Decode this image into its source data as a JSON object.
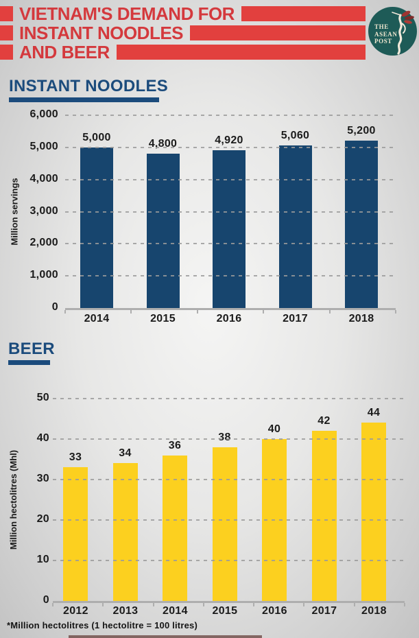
{
  "header": {
    "title_lines": [
      "VIETNAM'S DEMAND FOR",
      "INSTANT NOODLES",
      "AND BEER"
    ],
    "logo": {
      "line1": "THE",
      "line2": "ASEAN",
      "line3": "POST"
    }
  },
  "footnote": "*Million hectolitres (1 hectolitre = 100 litres)",
  "colors": {
    "accent_red": "#E2403E",
    "title_red": "#D4393D",
    "navy": "#1B4B7C",
    "noodle_bar": "#17456E",
    "beer_bar": "#FCD01F",
    "logo_teal": "#1E5B57"
  },
  "chart_data": [
    {
      "type": "bar",
      "section_title": "INSTANT NOODLES",
      "categories": [
        "2014",
        "2015",
        "2016",
        "2017",
        "2018"
      ],
      "values": [
        5000,
        4800,
        4920,
        5060,
        5200
      ],
      "value_labels": [
        "5,000",
        "4,800",
        "4,920",
        "5,060",
        "5,200"
      ],
      "xlabel": "",
      "ylabel": "Million servings",
      "ylim": [
        0,
        6000
      ],
      "yticks": [
        0,
        1000,
        2000,
        3000,
        4000,
        5000,
        6000
      ],
      "ytick_labels": [
        "0",
        "1,000",
        "2,000",
        "3,000",
        "4,000",
        "5,000",
        "6,000"
      ],
      "bar_color": "#17456E",
      "grid": "dashed horizontal",
      "legend": "none"
    },
    {
      "type": "bar",
      "section_title": "BEER",
      "categories": [
        "2012",
        "2013",
        "2014",
        "2015",
        "2016",
        "2017",
        "2018"
      ],
      "values": [
        33,
        34,
        36,
        38,
        40,
        42,
        44
      ],
      "value_labels": [
        "33",
        "34",
        "36",
        "38",
        "40",
        "42",
        "44"
      ],
      "xlabel": "",
      "ylabel": "Million hectolitres (Mhl)",
      "ylim": [
        0,
        50
      ],
      "yticks": [
        0,
        10,
        20,
        30,
        40,
        50
      ],
      "ytick_labels": [
        "0",
        "10",
        "20",
        "30",
        "40",
        "50"
      ],
      "bar_color": "#FCD01F",
      "grid": "dashed horizontal",
      "legend": "none"
    }
  ]
}
